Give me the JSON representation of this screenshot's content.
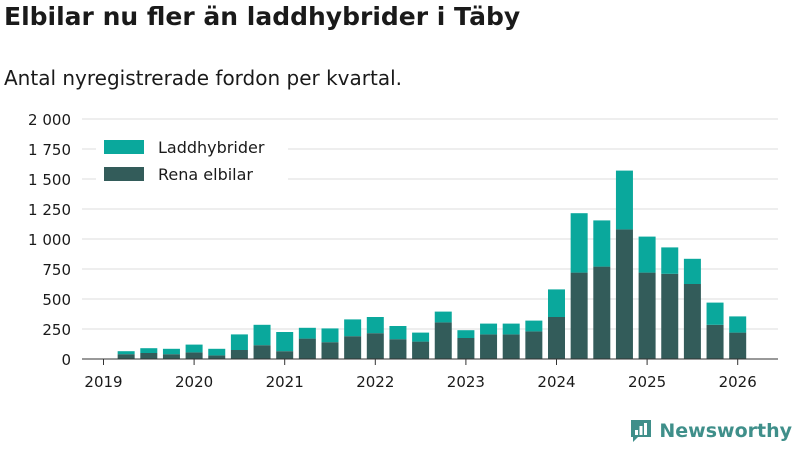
{
  "brand": {
    "name": "Newsworthy",
    "logo_icon": "newsworthy-logo-icon",
    "color": "#3f8f8a"
  },
  "chart_data": {
    "type": "bar",
    "stacked": true,
    "title": "Elbilar nu fler än laddhybrider i Täby",
    "subtitle": "Antal nyregistrerade fordon per kvartal.",
    "xlabel": "",
    "ylabel": "",
    "ylim": [
      0,
      2000
    ],
    "yticks": [
      0,
      250,
      500,
      750,
      1000,
      1250,
      1500,
      1750,
      2000
    ],
    "ytick_labels": [
      "0",
      "250",
      "500",
      "750",
      "1 000",
      "1 250",
      "1 500",
      "1 750",
      "2 000"
    ],
    "xtick_labels": [
      "2019",
      "2020",
      "2021",
      "2022",
      "2023",
      "2024",
      "2025",
      "2026"
    ],
    "grid": true,
    "legend_position": "top-left",
    "categories": [
      "2019 Q2",
      "2019 Q3",
      "2019 Q4",
      "2020 Q1",
      "2020 Q2",
      "2020 Q3",
      "2020 Q4",
      "2021 Q1",
      "2021 Q2",
      "2021 Q3",
      "2021 Q4",
      "2022 Q1",
      "2022 Q2",
      "2022 Q3",
      "2022 Q4",
      "2023 Q1",
      "2023 Q2",
      "2023 Q3",
      "2023 Q4",
      "2024 Q1",
      "2024 Q2",
      "2024 Q3",
      "2024 Q4",
      "2025 Q1",
      "2025 Q2",
      "2025 Q3",
      "2025 Q4",
      "2026 Q1"
    ],
    "series": [
      {
        "name": "Rena elbilar",
        "color": "#335c5a",
        "values": [
          40,
          50,
          40,
          55,
          30,
          75,
          115,
          65,
          170,
          140,
          190,
          215,
          165,
          145,
          305,
          175,
          205,
          205,
          230,
          350,
          720,
          770,
          1080,
          720,
          710,
          625,
          285,
          220
        ]
      },
      {
        "name": "Laddhybrider",
        "color": "#0aa89c",
        "values": [
          25,
          40,
          45,
          65,
          55,
          130,
          170,
          160,
          90,
          115,
          140,
          135,
          110,
          75,
          90,
          65,
          90,
          90,
          90,
          230,
          495,
          385,
          490,
          300,
          220,
          210,
          185,
          135
        ]
      }
    ]
  }
}
